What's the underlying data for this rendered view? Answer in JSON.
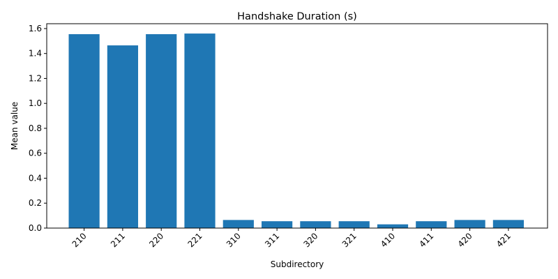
{
  "chart_data": {
    "type": "bar",
    "title": "Handshake Duration (s)",
    "xlabel": "Subdirectory",
    "ylabel": "Mean value",
    "categories": [
      "210",
      "211",
      "220",
      "221",
      "310",
      "311",
      "320",
      "321",
      "410",
      "411",
      "420",
      "421"
    ],
    "values": [
      1.555,
      1.465,
      1.555,
      1.56,
      0.065,
      0.055,
      0.055,
      0.055,
      0.03,
      0.055,
      0.065,
      0.065
    ],
    "ylim": [
      0,
      1.6388
    ],
    "yticks": [
      0.0,
      0.2,
      0.4,
      0.6,
      0.8,
      1.0,
      1.2,
      1.4,
      1.6
    ],
    "ytick_labels": [
      "0.0",
      "0.2",
      "0.4",
      "0.6",
      "0.8",
      "1.0",
      "1.2",
      "1.4",
      "1.6"
    ],
    "bar_color": "#1f77b4",
    "grid": false,
    "legend": "none"
  }
}
